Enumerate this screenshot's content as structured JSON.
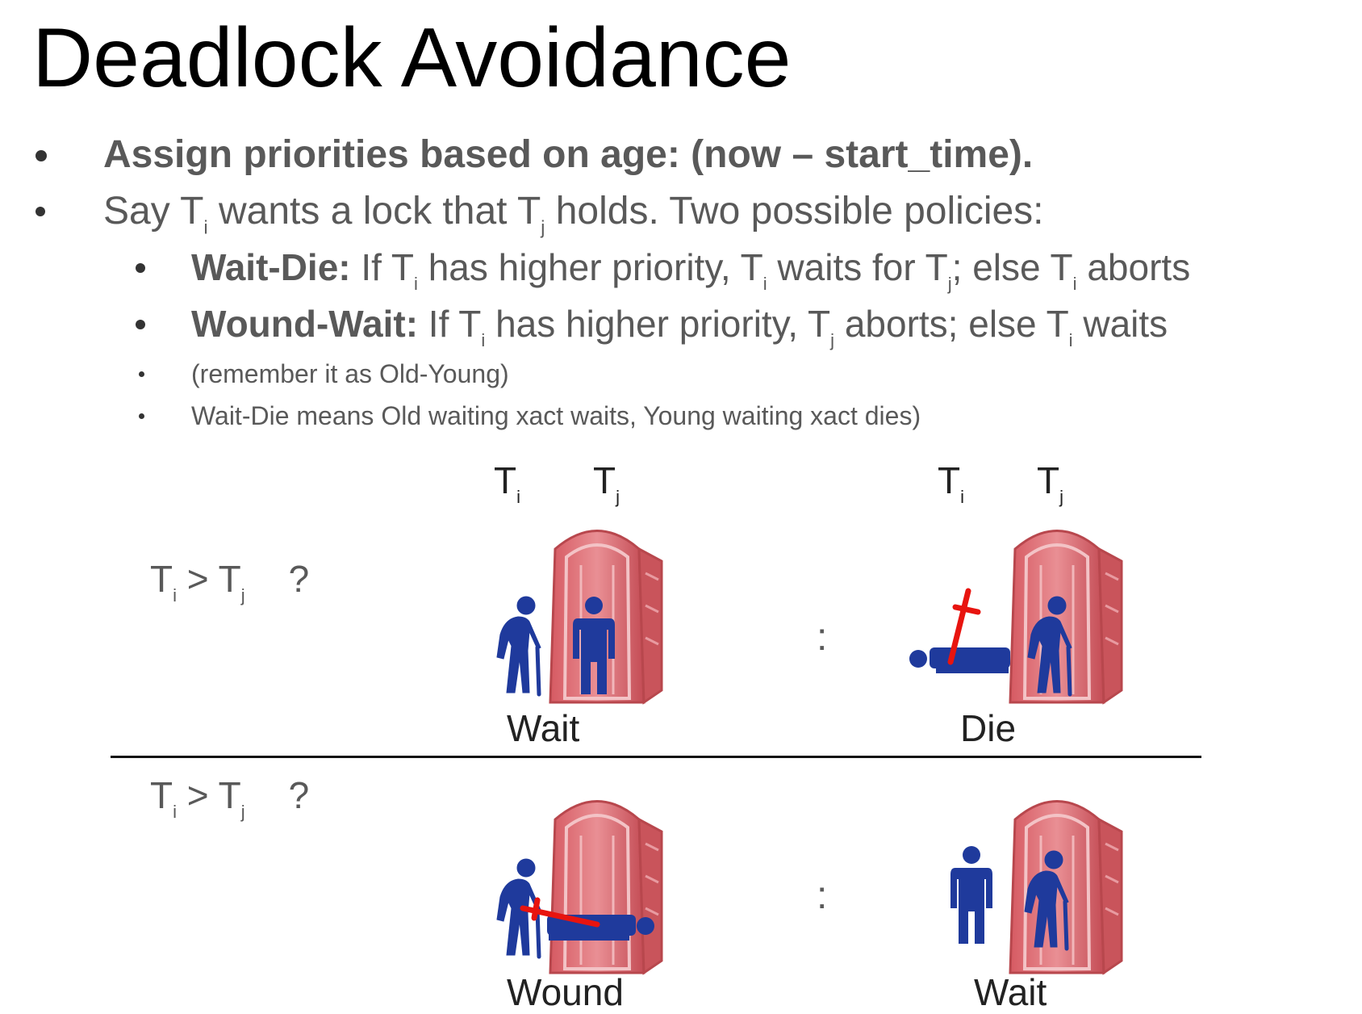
{
  "title": "Deadlock Avoidance",
  "bullets": {
    "b1": "Assign priorities based on age:  (now – start_time).",
    "b2": {
      "say": "Say T",
      "i": "i",
      "wants": " wants a lock that T",
      "j": "j",
      "rest": " holds.  Two possible policies:"
    },
    "b3": {
      "label": "Wait-Die:",
      "p1": " If T",
      "s1": "i",
      "p2": " has higher priority, T",
      "s2": "i",
      "p3": " waits for T",
      "s3": "j",
      "p4": "; else T",
      "s4": "i",
      "p5": " aborts"
    },
    "b4": {
      "label": "Wound-Wait:",
      "p1": " If T",
      "s1": "i",
      "p2": " has higher priority, T",
      "s2": "j",
      "p3": " aborts; else T",
      "s3": "i",
      "p4": " waits"
    },
    "b5": "(remember it as Old-Young)",
    "b6": "Wait-Die means Old waiting xact waits, Young waiting xact dies)"
  },
  "diagram": {
    "col_labels": {
      "t": "T",
      "i": "i",
      "j": "j"
    },
    "condition": {
      "t1": "T",
      "s1": "i",
      "op": " > T",
      "s2": "j",
      "q": "?"
    },
    "colon": ":",
    "captions": {
      "wait_die_yes": "Wait",
      "wait_die_no": "Die",
      "wound_wait_yes": "Wound",
      "wound_wait_no": "Wait"
    },
    "colors": {
      "figure": "#1f3a9c",
      "sword": "#e8140f",
      "toilet": "#d9666b",
      "toilet_dark": "#b8474d"
    },
    "icons": [
      "old-man-icon",
      "young-man-icon",
      "portable-toilet-icon",
      "sword-icon"
    ]
  }
}
